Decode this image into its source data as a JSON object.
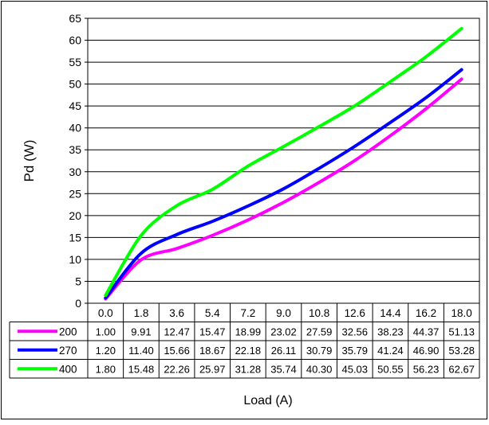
{
  "chart_data": {
    "type": "line",
    "title": "",
    "xlabel": "Load (A)",
    "ylabel": "Pd (W)",
    "ylim": [
      0,
      65
    ],
    "y_ticks": [
      "0",
      "5",
      "10",
      "15",
      "20",
      "25",
      "30",
      "35",
      "40",
      "45",
      "50",
      "55",
      "60",
      "65"
    ],
    "categories": [
      "0.0",
      "1.8",
      "3.6",
      "5.4",
      "7.2",
      "9.0",
      "10.8",
      "12.6",
      "14.4",
      "16.2",
      "18.0"
    ],
    "grid": "horizontal major gridlines",
    "legend": "data table below plot with series keys",
    "series": [
      {
        "name": "200",
        "color": "#ff00ff",
        "values": [
          1.0,
          9.91,
          12.47,
          15.47,
          18.99,
          23.02,
          27.59,
          32.56,
          38.23,
          44.37,
          51.13
        ],
        "labels": [
          "1.00",
          "9.91",
          "12.47",
          "15.47",
          "18.99",
          "23.02",
          "27.59",
          "32.56",
          "38.23",
          "44.37",
          "51.13"
        ]
      },
      {
        "name": "270",
        "color": "#0000ff",
        "values": [
          1.2,
          11.4,
          15.66,
          18.67,
          22.18,
          26.11,
          30.79,
          35.79,
          41.24,
          46.9,
          53.28
        ],
        "labels": [
          "1.20",
          "11.40",
          "15.66",
          "18.67",
          "22.18",
          "26.11",
          "30.79",
          "35.79",
          "41.24",
          "46.90",
          "53.28"
        ]
      },
      {
        "name": "400",
        "color": "#00ff00",
        "values": [
          1.8,
          15.48,
          22.26,
          25.97,
          31.28,
          35.74,
          40.3,
          45.03,
          50.55,
          56.23,
          62.67
        ],
        "labels": [
          "1.80",
          "15.48",
          "22.26",
          "25.97",
          "31.28",
          "35.74",
          "40.30",
          "45.03",
          "50.55",
          "56.23",
          "62.67"
        ]
      }
    ]
  }
}
